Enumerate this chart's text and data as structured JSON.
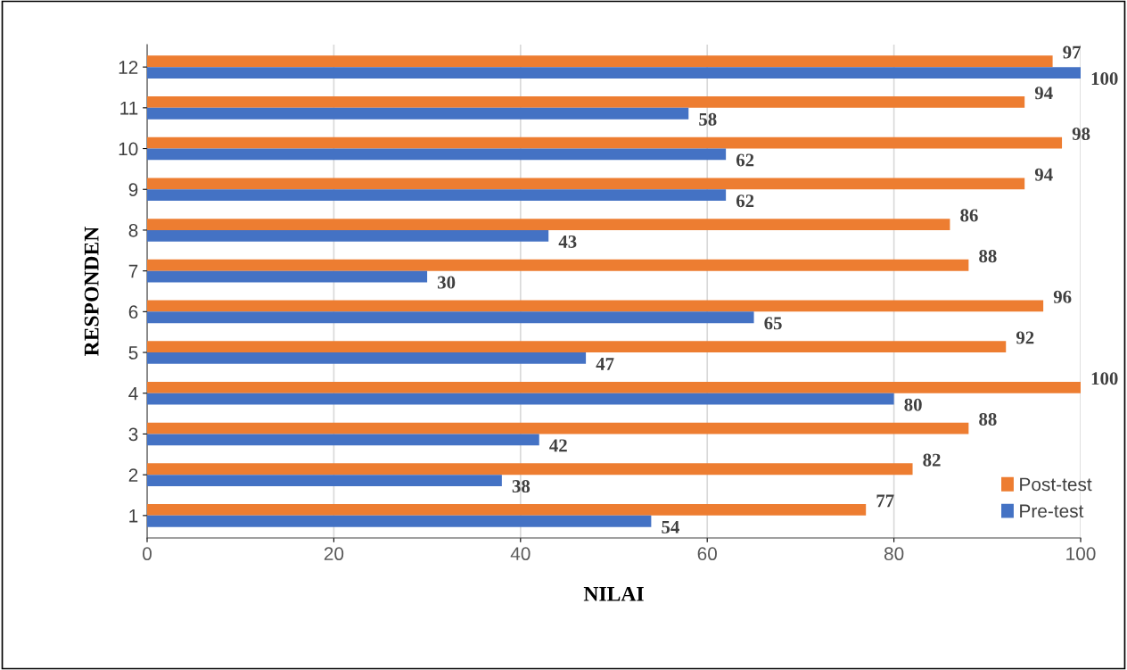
{
  "chart_data": {
    "type": "bar",
    "orientation": "horizontal",
    "xlabel": "NILAI",
    "ylabel": "RESPONDEN",
    "categories": [
      "12",
      "11",
      "10",
      "9",
      "8",
      "7",
      "6",
      "5",
      "4",
      "3",
      "2",
      "1"
    ],
    "series": [
      {
        "name": "Post-test",
        "color": "#ed7d31",
        "values": [
          97,
          94,
          98,
          94,
          86,
          88,
          96,
          92,
          100,
          88,
          82,
          77
        ]
      },
      {
        "name": "Pre-test",
        "color": "#4472c4",
        "values": [
          100,
          58,
          62,
          62,
          43,
          30,
          65,
          47,
          80,
          42,
          38,
          54
        ]
      }
    ],
    "xlim": [
      0,
      100
    ],
    "xticks": [
      0,
      20,
      40,
      60,
      80,
      100
    ],
    "grid": "x",
    "legend": "bottom right",
    "data_labels": true
  }
}
